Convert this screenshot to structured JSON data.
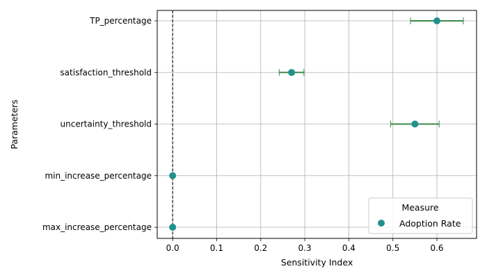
{
  "chart_data": {
    "type": "scatter",
    "orientation": "horizontal",
    "xlabel": "Sensitivity Index",
    "ylabel": "Parameters",
    "xlim": [
      -0.035,
      0.69
    ],
    "xticks": [
      0.0,
      0.1,
      0.2,
      0.3,
      0.4,
      0.5,
      0.6
    ],
    "xtick_labels": [
      "0.0",
      "0.1",
      "0.2",
      "0.3",
      "0.4",
      "0.5",
      "0.6"
    ],
    "categories": [
      "TP_percentage",
      "satisfaction_threshold",
      "uncertainty_threshold",
      "min_increase_percentage",
      "max_increase_percentage"
    ],
    "grid": true,
    "reference_line": {
      "x": 0.0,
      "style": "dashed",
      "color": "#000000"
    },
    "series": [
      {
        "name": "Adoption Rate",
        "color": "#21918c",
        "errorbar_color": "#3a8a4a",
        "values": [
          0.6,
          0.27,
          0.55,
          0.0,
          0.0
        ],
        "error_low": [
          0.54,
          0.242,
          0.495,
          null,
          null
        ],
        "error_high": [
          0.66,
          0.298,
          0.605,
          null,
          null
        ]
      }
    ],
    "legend": {
      "title": "Measure",
      "position": "lower-right"
    }
  }
}
